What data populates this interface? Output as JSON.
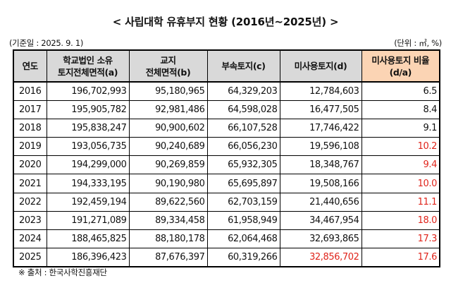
{
  "title": "< 사립대학 유휴부지 현황 (2016년~2025년) >",
  "note_left": "(기준일 : 2025. 9. 1)",
  "note_right": "(단위 : ㎡, %)",
  "headers": {
    "year": "연도",
    "total_line1": "학교법인 소유",
    "total_line2": "토지전체면적(a)",
    "campus_line1": "교지",
    "campus_line2": "전체면적(b)",
    "annex": "부속토지(c)",
    "unused": "미사용토지(d)",
    "ratio_line1": "미사용토지 비율",
    "ratio_line2": "(d/a)"
  },
  "rows": [
    {
      "year": "2016",
      "total": "196,702,993",
      "campus": "95,180,965",
      "annex": "64,329,203",
      "unused": "12,784,603",
      "ratio": "6.5"
    },
    {
      "year": "2017",
      "total": "195,905,782",
      "campus": "92,981,486",
      "annex": "64,598,028",
      "unused": "16,477,505",
      "ratio": "8.4"
    },
    {
      "year": "2018",
      "total": "195,838,247",
      "campus": "90,900,602",
      "annex": "66,107,528",
      "unused": "17,746,422",
      "ratio": "9.1"
    },
    {
      "year": "2019",
      "total": "193,056,735",
      "campus": "90,240,689",
      "annex": "66,056,230",
      "unused": "19,596,108",
      "ratio": "10.2"
    },
    {
      "year": "2020",
      "total": "194,299,000",
      "campus": "90,269,859",
      "annex": "65,932,305",
      "unused": "18,348,767",
      "ratio": "9.4"
    },
    {
      "year": "2021",
      "total": "194,333,195",
      "campus": "90,190,980",
      "annex": "65,695,897",
      "unused": "19,508,166",
      "ratio": "10.0"
    },
    {
      "year": "2022",
      "total": "192,459,194",
      "campus": "89,622,560",
      "annex": "62,703,159",
      "unused": "21,440,656",
      "ratio": "11.1"
    },
    {
      "year": "2023",
      "total": "191,271,089",
      "campus": "89,334,458",
      "annex": "61,958,949",
      "unused": "34,467,954",
      "ratio": "18.0"
    },
    {
      "year": "2024",
      "total": "188,465,825",
      "campus": "88,180,178",
      "annex": "62,064,468",
      "unused": "32,693,865",
      "ratio": "17.3"
    },
    {
      "year": "2025",
      "total": "186,396,423",
      "campus": "87,676,397",
      "annex": "60,319,266",
      "unused": "32,856,702",
      "ratio": "17.6"
    }
  ],
  "source": "※ 출처 : 한국사학진흥재단",
  "colors": {
    "header_bg": "#d9d9d9",
    "highlight_bg": "#fbd4b4",
    "red_text": "#e0241b"
  }
}
